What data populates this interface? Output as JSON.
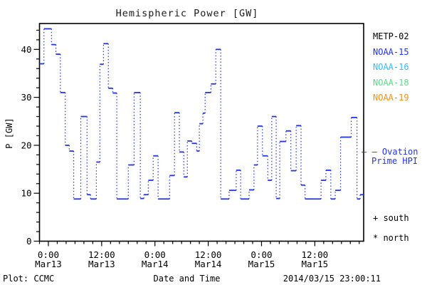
{
  "title": "Hemispheric Power [GW]",
  "footer": {
    "left": "Plot: CCMC",
    "right": "2014/03/15 23:00:11"
  },
  "legend": {
    "satellites": [
      {
        "label": "METP-02",
        "color": "#000000"
      },
      {
        "label": "NOAA-15",
        "color": "#2233ee"
      },
      {
        "label": "NOAA-16",
        "color": "#33bbff"
      },
      {
        "label": "NOAA-18",
        "color": "#55dd88"
      },
      {
        "label": "NOAA-19",
        "color": "#f09018"
      }
    ],
    "model": {
      "marker": "– —",
      "line1": "Ovation",
      "line2": "Prime HPI",
      "color": "#2233ee"
    },
    "hemisphere_markers": [
      {
        "symbol": "+",
        "label": "south"
      },
      {
        "symbol": "*",
        "label": "north"
      }
    ]
  },
  "chart_data": {
    "type": "line",
    "subtype": "step",
    "title": "Hemispheric Power [GW]",
    "xlabel": "Date and Time",
    "ylabel": "P [GW]",
    "ylim": [
      0,
      45.4
    ],
    "y_major_ticks": [
      0,
      10,
      20,
      30,
      40
    ],
    "y_minor_step": 2,
    "xlim_hours": [
      0,
      73
    ],
    "x_minor_step_hours": 2,
    "x_major_ticks": [
      {
        "hours": 2,
        "time": "0:00",
        "date": "Mar13"
      },
      {
        "hours": 14,
        "time": "12:00",
        "date": "Mar13"
      },
      {
        "hours": 26,
        "time": "0:00",
        "date": "Mar14"
      },
      {
        "hours": 38,
        "time": "12:00",
        "date": "Mar14"
      },
      {
        "hours": 50,
        "time": "0:00",
        "date": "Mar15"
      },
      {
        "hours": 62,
        "time": "12:00",
        "date": "Mar15"
      }
    ],
    "grid": false,
    "legend_position": "right",
    "series": [
      {
        "name": "Ovation Prime HPI",
        "color": "#2233ee",
        "style": "step-with-dotted-connectors",
        "points_hours_gw": [
          [
            0,
            37
          ],
          [
            1,
            44.3
          ],
          [
            2.7,
            41
          ],
          [
            3.7,
            39
          ],
          [
            4.7,
            31
          ],
          [
            5.8,
            20
          ],
          [
            6.7,
            18.8
          ],
          [
            7.7,
            8.8
          ],
          [
            9.3,
            26
          ],
          [
            10.7,
            9.7
          ],
          [
            11.5,
            8.8
          ],
          [
            12.8,
            16.5
          ],
          [
            13.6,
            36.9
          ],
          [
            14.4,
            41.2
          ],
          [
            15.5,
            31.9
          ],
          [
            16.5,
            30.9
          ],
          [
            17.4,
            8.8
          ],
          [
            20,
            15.9
          ],
          [
            21.3,
            31
          ],
          [
            22.7,
            8.9
          ],
          [
            23.5,
            9.7
          ],
          [
            24.5,
            12.7
          ],
          [
            25.6,
            17.8
          ],
          [
            26.7,
            8.8
          ],
          [
            29.3,
            13.7
          ],
          [
            30.4,
            26.8
          ],
          [
            31.5,
            18.6
          ],
          [
            32.5,
            13.4
          ],
          [
            33.3,
            20.9
          ],
          [
            34.3,
            20.4
          ],
          [
            35.4,
            18.8
          ],
          [
            36,
            24.5
          ],
          [
            36.8,
            26.7
          ],
          [
            37.3,
            31
          ],
          [
            38.6,
            32.8
          ],
          [
            39.7,
            40
          ],
          [
            40.8,
            8.8
          ],
          [
            42.7,
            10.6
          ],
          [
            44.3,
            14.8
          ],
          [
            45.3,
            8.8
          ],
          [
            47.2,
            10.7
          ],
          [
            48.3,
            15.9
          ],
          [
            49.1,
            24
          ],
          [
            50.2,
            17.8
          ],
          [
            51.4,
            12.7
          ],
          [
            52.3,
            26
          ],
          [
            53.3,
            8.9
          ],
          [
            54.1,
            20.8
          ],
          [
            55.5,
            23
          ],
          [
            56.6,
            14.7
          ],
          [
            57.8,
            24.1
          ],
          [
            58.9,
            11.7
          ],
          [
            59.8,
            8.8
          ],
          [
            63.4,
            12.7
          ],
          [
            64.5,
            14.8
          ],
          [
            65.6,
            8.8
          ],
          [
            66.6,
            10.6
          ],
          [
            67.8,
            21.7
          ],
          [
            70.2,
            25.8
          ],
          [
            71.5,
            8.8
          ],
          [
            72.2,
            9.7
          ]
        ]
      }
    ]
  }
}
